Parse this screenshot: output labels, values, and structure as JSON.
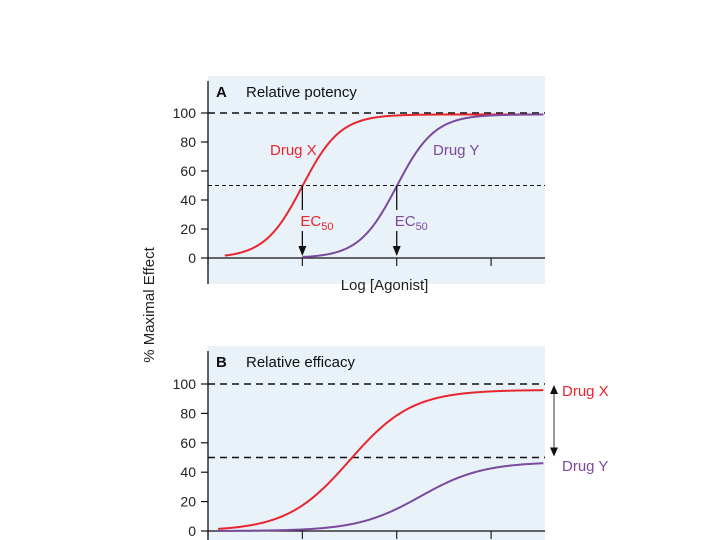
{
  "ylabel": "% Maximal Effect",
  "colors": {
    "panel_bg": "#e9f1f9",
    "drug_x": "#e8262e",
    "drug_y": "#7b4a9c",
    "axis": "#111111"
  },
  "chart_data": [
    {
      "type": "line",
      "panel": "A",
      "title": "Relative potency",
      "xlabel": "Log [Agonist]",
      "ylabel": "% Maximal Effect",
      "ylim": [
        0,
        100
      ],
      "yticks": [
        0,
        20,
        40,
        60,
        80,
        100
      ],
      "xlim": [
        0,
        10
      ],
      "reference_lines": [
        100,
        50
      ],
      "series": [
        {
          "name": "Drug X",
          "color": "#e8262e",
          "ec50": 2.8,
          "slope": 1.4,
          "max": 99,
          "start": 0.5
        },
        {
          "name": "Drug Y",
          "color": "#7b4a9c",
          "ec50": 5.6,
          "slope": 1.4,
          "max": 99,
          "start": 2.8
        }
      ],
      "annotations": [
        {
          "text": "EC",
          "sub": "50",
          "x": 2.8,
          "series": "Drug X"
        },
        {
          "text": "EC",
          "sub": "50",
          "x": 5.6,
          "series": "Drug Y"
        }
      ]
    },
    {
      "type": "line",
      "panel": "B",
      "title": "Relative efficacy",
      "xlabel": "",
      "ylabel": "% Maximal Effect",
      "ylim": [
        0,
        100
      ],
      "yticks": [
        0,
        20,
        40,
        60,
        80,
        100
      ],
      "xlim": [
        0,
        10
      ],
      "reference_lines": [
        100,
        50
      ],
      "series": [
        {
          "name": "Drug X",
          "color": "#e8262e",
          "ec50": 4.2,
          "slope": 0.85,
          "max": 96,
          "start": 0.3
        },
        {
          "name": "Drug Y",
          "color": "#7b4a9c",
          "ec50": 6.3,
          "slope": 0.85,
          "max": 47,
          "start": 0.3
        }
      ]
    }
  ]
}
